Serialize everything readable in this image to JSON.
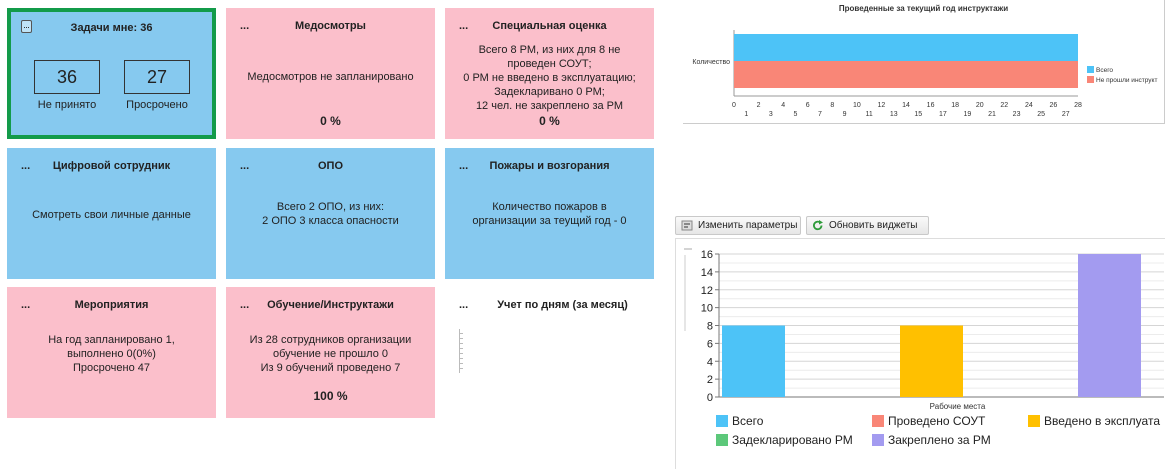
{
  "tiles": {
    "tasks": {
      "title": "Задачи мне: 36",
      "not_accepted_value": "36",
      "not_accepted_label": "Не принято",
      "overdue_value": "27",
      "overdue_label": "Просрочено"
    },
    "medical": {
      "dots": "...",
      "title": "Медосмотры",
      "text": "Медосмотров не запланировано",
      "percent": "0 %"
    },
    "special": {
      "dots": "...",
      "title": "Специальная оценка",
      "lines": [
        "Всего 8 РМ, из них для 8 не",
        "проведен СОУТ;",
        "0 РМ не введено в эксплуатацию;",
        "Задекларивано 0 РМ;",
        "12 чел. не закреплено за РМ"
      ],
      "percent": "0 %"
    },
    "digital": {
      "dots": "...",
      "title": "Цифровой сотрудник",
      "text": "Смотреть свои личные данные"
    },
    "opo": {
      "dots": "...",
      "title": "ОПО",
      "lines": [
        "Всего 2 ОПО, из них:",
        "2 ОПО 3 класса опасности"
      ]
    },
    "fires": {
      "dots": "...",
      "title": "Пожары и возгорания",
      "lines": [
        "Количество пожаров в",
        "организации за теущий год - 0"
      ]
    },
    "events": {
      "dots": "...",
      "title": "Мероприятия",
      "lines": [
        "На год запланировано 1,",
        "выполнено 0(0%)",
        "Просрочено 47"
      ]
    },
    "training": {
      "dots": "...",
      "title": "Обучение/Инструктажи",
      "lines": [
        "Из 28 сотрудников организации",
        "обучение не прошло 0",
        "Из 9 обучений проведено 7"
      ],
      "percent": "100 %"
    },
    "daily": {
      "dots": "...",
      "title": "Учет по дням (за месяц)"
    }
  },
  "toolbar": {
    "change_params": "Изменить параметры",
    "refresh_widgets": "Обновить виджеты"
  },
  "chart_data": [
    {
      "type": "bar",
      "orientation": "horizontal",
      "title": "Проведенные за текущий год инструктажи",
      "categories": [
        "Количество"
      ],
      "series": [
        {
          "name": "Всего",
          "values": [
            28
          ],
          "color": "#4dc3f7"
        },
        {
          "name": "Не прошли инструктаж",
          "legend_text": "Не прошли инструкт",
          "values": [
            28
          ],
          "color": "#f98677"
        }
      ],
      "xlim": [
        0,
        28
      ],
      "x_ticks_top": [
        "0",
        "2",
        "4",
        "6",
        "8",
        "10",
        "12",
        "14",
        "16",
        "18",
        "20",
        "22",
        "24",
        "26",
        "28"
      ],
      "x_ticks_bottom": [
        "1",
        "3",
        "5",
        "7",
        "9",
        "11",
        "13",
        "15",
        "17",
        "19",
        "21",
        "23",
        "25",
        "27"
      ],
      "legend": "right"
    },
    {
      "type": "bar",
      "xlabel": "Рабочие места",
      "ylim": [
        0,
        16
      ],
      "y_ticks": [
        "0",
        "2",
        "4",
        "6",
        "8",
        "10",
        "12",
        "14",
        "16"
      ],
      "series": [
        {
          "name": "Всего",
          "value": 8,
          "color": "#4dc3f7"
        },
        {
          "name": "Проведено СОУТ",
          "value": 0,
          "color": "#f98677"
        },
        {
          "name": "Введено в эксплуата",
          "value": 8,
          "color": "#ffc000"
        },
        {
          "name": "Задекларировано РМ",
          "value": 0,
          "color": "#5cc87a"
        },
        {
          "name": "Закреплено за РМ",
          "value": 16,
          "color": "#a39bf0"
        }
      ],
      "grid": true,
      "legend": "bottom"
    }
  ]
}
